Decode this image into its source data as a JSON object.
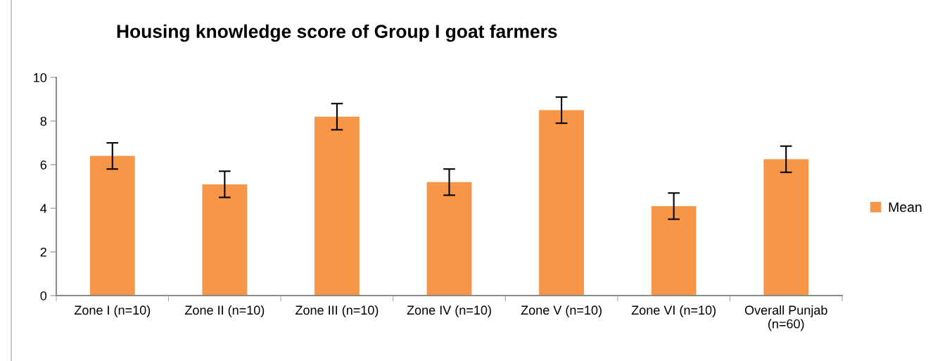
{
  "chart_data": {
    "type": "bar",
    "title": "Housing knowledge score of Group I goat farmers",
    "categories": [
      "Zone I (n=10)",
      "Zone II (n=10)",
      "Zone III (n=10)",
      "Zone IV (n=10)",
      "Zone V (n=10)",
      "Zone VI (n=10)",
      "Overall Punjab\n(n=60)"
    ],
    "series": [
      {
        "name": "Mean",
        "color": "#f79646",
        "values": [
          6.4,
          5.1,
          8.2,
          5.2,
          8.5,
          4.1,
          6.25
        ],
        "errors": [
          0.6,
          0.6,
          0.6,
          0.6,
          0.6,
          0.6,
          0.6
        ]
      }
    ],
    "ylim": [
      0,
      10
    ],
    "yticks": [
      0,
      2,
      4,
      6,
      8,
      10
    ],
    "grid": false,
    "legend": "right"
  }
}
